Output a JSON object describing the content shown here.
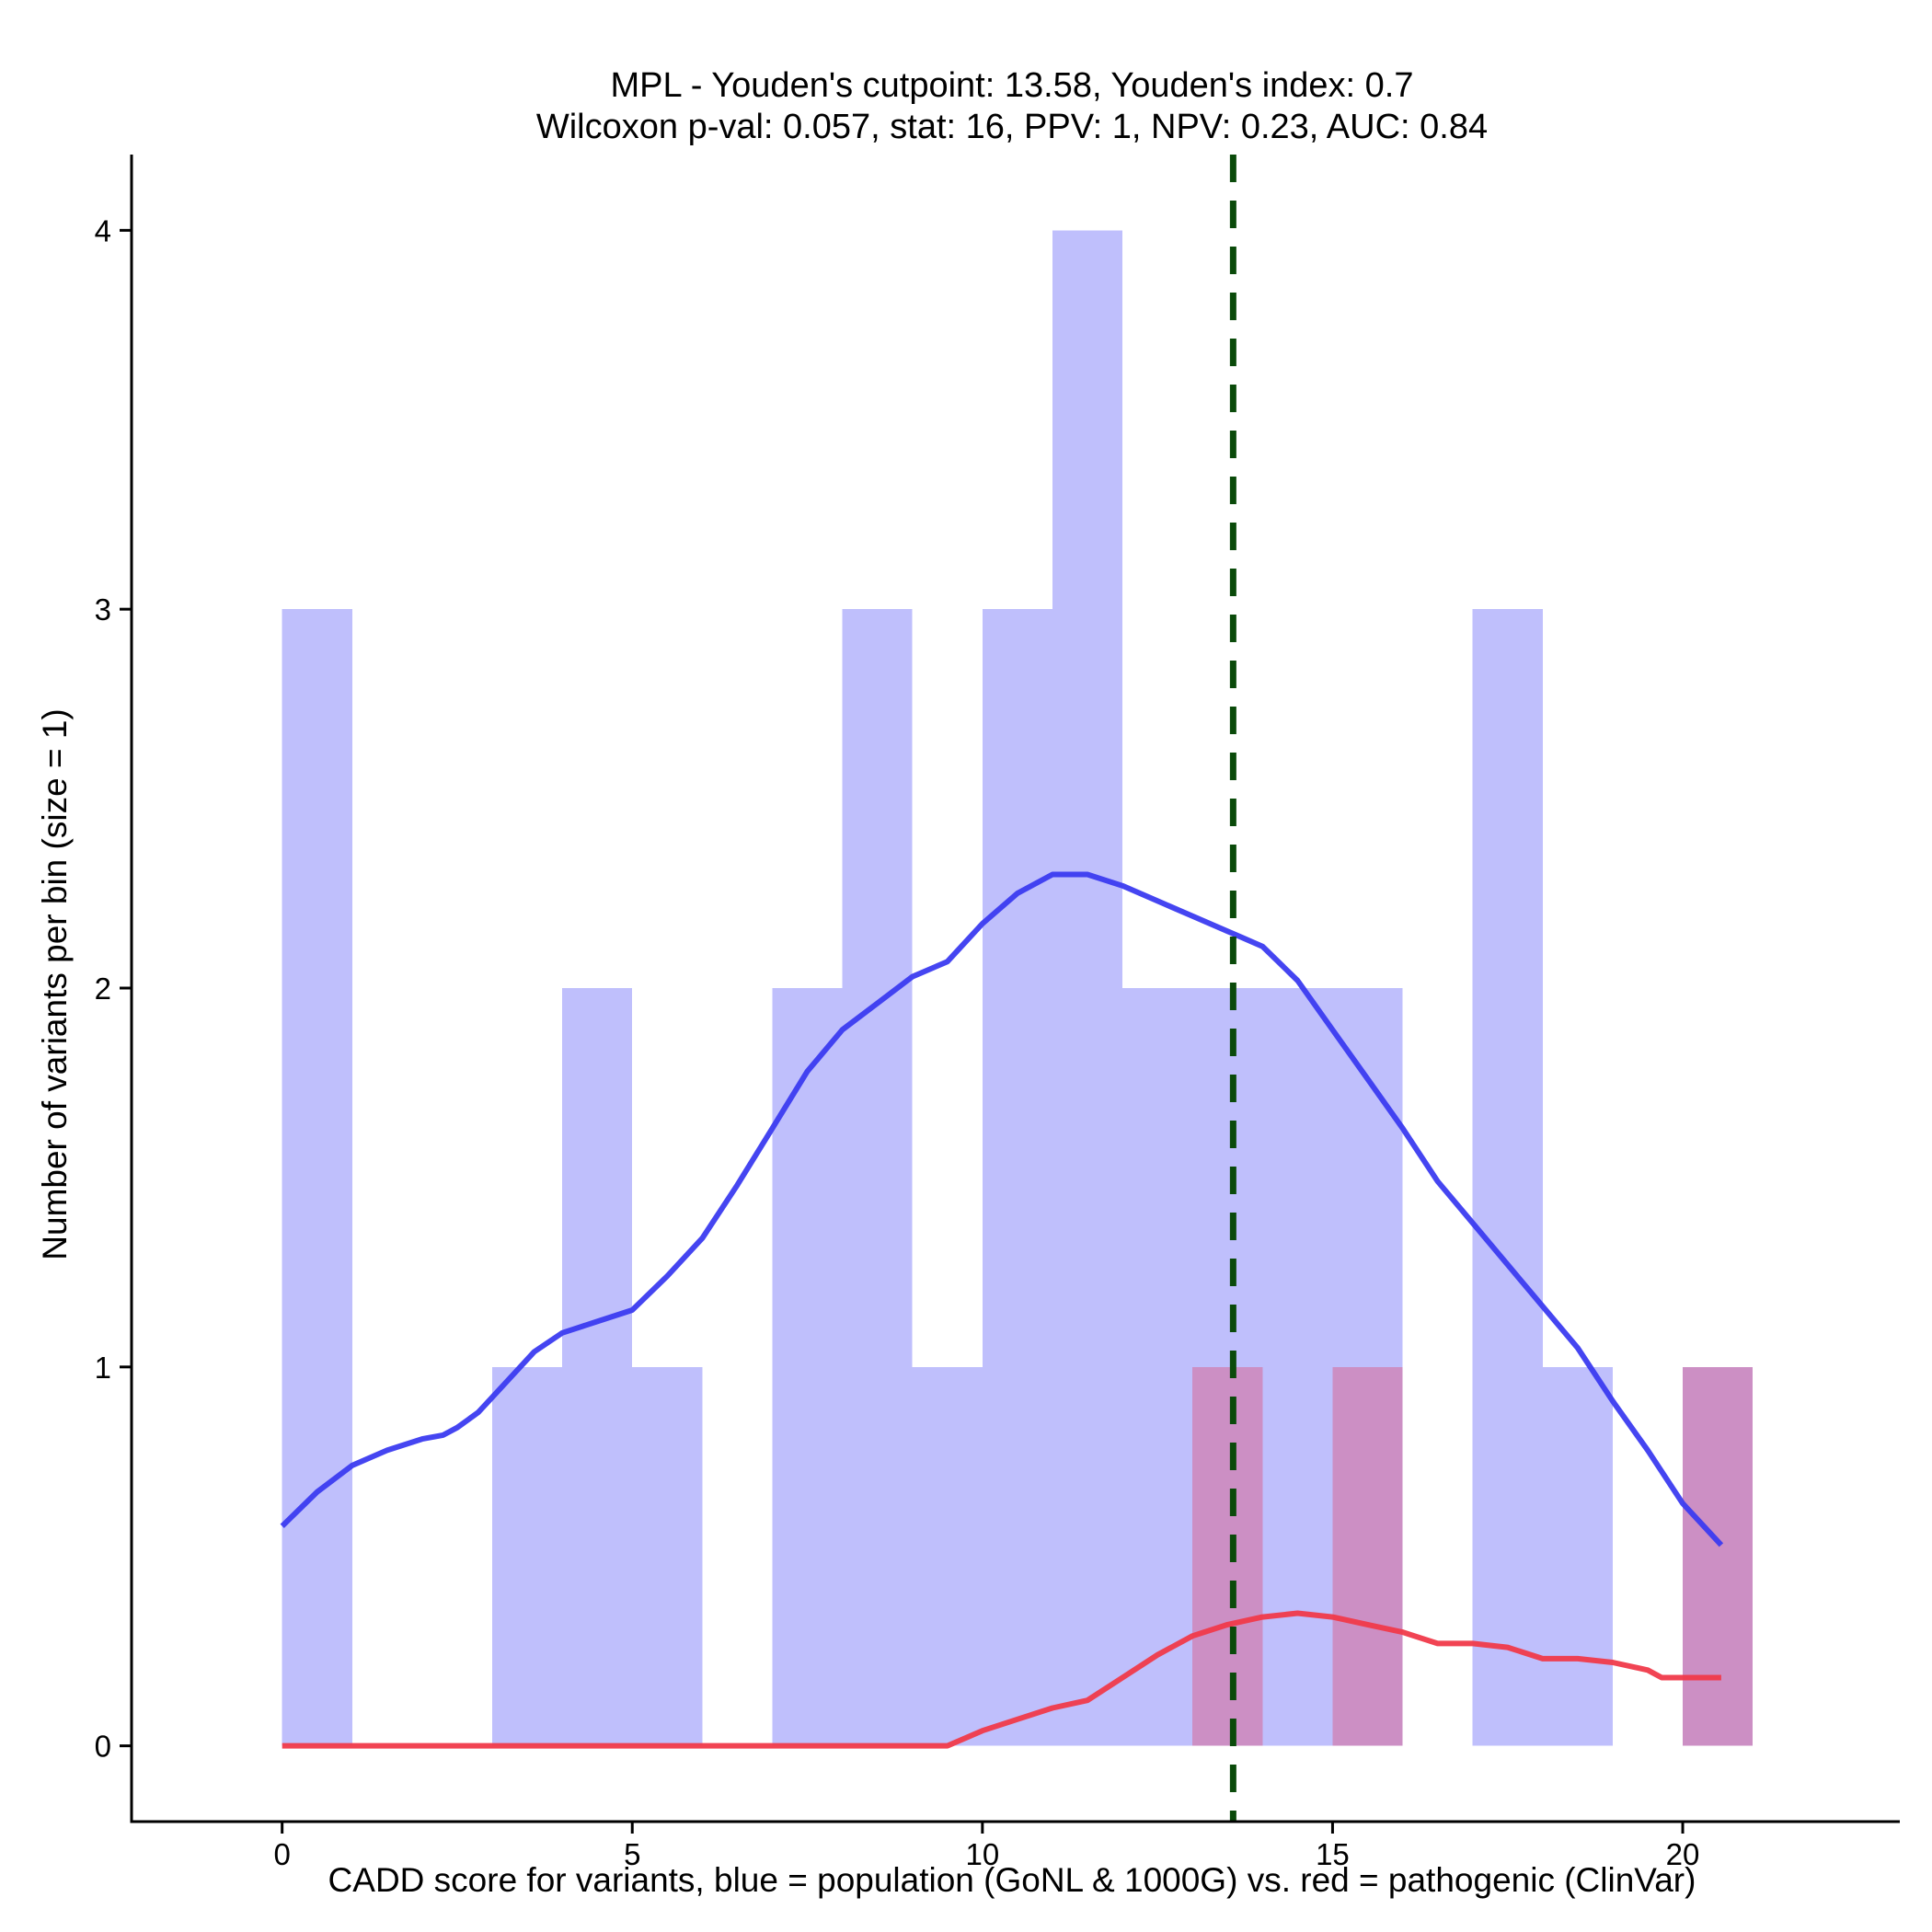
{
  "chart_data": {
    "type": "bar",
    "title": "MPL - Youden's cutpoint: 13.58, Youden's index: 0.7",
    "subtitle": "Wilcoxon p-val: 0.057, stat: 16, PPV: 1, NPV: 0.23, AUC: 0.84",
    "xlabel": "CADD score for variants, blue = population (GoNL & 1000G) vs. red = pathogenic (ClinVar)",
    "ylabel": "Number of variants per bin (size = 1)",
    "xlim": [
      -2.15,
      23.1
    ],
    "ylim": [
      -0.2,
      4.2
    ],
    "x_ticks": [
      0,
      5,
      10,
      15,
      20
    ],
    "y_ticks": [
      0,
      1,
      2,
      3,
      4
    ],
    "bin_width": 1,
    "cutpoint": 13.58,
    "colors": {
      "population_bar": "#bfbffc",
      "pathogenic_bar": "#cc8fc4",
      "population_line": "#3b3bf0",
      "pathogenic_line": "#f03a4a",
      "cutpoint_line": "#0a4a0a"
    },
    "series": [
      {
        "bins": [
          {
            "start": 0,
            "count": 3
          },
          {
            "start": 3,
            "count": 1
          },
          {
            "start": 4,
            "count": 2
          },
          {
            "start": 5,
            "count": 1
          },
          {
            "start": 7,
            "count": 2
          },
          {
            "start": 8,
            "count": 3
          },
          {
            "start": 9,
            "count": 1
          },
          {
            "start": 10,
            "count": 3
          },
          {
            "start": 11,
            "count": 4
          },
          {
            "start": 12,
            "count": 2
          },
          {
            "start": 13,
            "count": 2
          },
          {
            "start": 14,
            "count": 2
          },
          {
            "start": 15,
            "count": 2
          },
          {
            "start": 17,
            "count": 3
          },
          {
            "start": 18,
            "count": 1
          }
        ],
        "density": [
          [
            0.0,
            0.58
          ],
          [
            0.5,
            0.67
          ],
          [
            1.0,
            0.74
          ],
          [
            1.5,
            0.78
          ],
          [
            2.0,
            0.81
          ],
          [
            2.3,
            0.82
          ],
          [
            2.5,
            0.84
          ],
          [
            2.8,
            0.88
          ],
          [
            3.0,
            0.92
          ],
          [
            3.3,
            0.98
          ],
          [
            3.6,
            1.04
          ],
          [
            4.0,
            1.09
          ],
          [
            4.5,
            1.12
          ],
          [
            5.0,
            1.15
          ],
          [
            5.5,
            1.24
          ],
          [
            6.0,
            1.34
          ],
          [
            6.5,
            1.48
          ],
          [
            7.0,
            1.63
          ],
          [
            7.5,
            1.78
          ],
          [
            8.0,
            1.89
          ],
          [
            8.5,
            1.96
          ],
          [
            9.0,
            2.03
          ],
          [
            9.5,
            2.07
          ],
          [
            10.0,
            2.17
          ],
          [
            10.5,
            2.25
          ],
          [
            11.0,
            2.3
          ],
          [
            11.5,
            2.3
          ],
          [
            12.0,
            2.27
          ],
          [
            12.5,
            2.23
          ],
          [
            13.0,
            2.19
          ],
          [
            13.5,
            2.15
          ],
          [
            14.0,
            2.11
          ],
          [
            14.5,
            2.02
          ],
          [
            15.0,
            1.89
          ],
          [
            15.5,
            1.76
          ],
          [
            16.0,
            1.63
          ],
          [
            16.5,
            1.49
          ],
          [
            17.0,
            1.38
          ],
          [
            17.5,
            1.27
          ],
          [
            18.0,
            1.16
          ],
          [
            18.5,
            1.05
          ],
          [
            19.0,
            0.91
          ],
          [
            19.5,
            0.78
          ],
          [
            20.0,
            0.64
          ],
          [
            20.55,
            0.53
          ]
        ]
      },
      {
        "bins": [
          {
            "start": 13,
            "count": 1
          },
          {
            "start": 15,
            "count": 1
          },
          {
            "start": 20,
            "count": 1
          }
        ],
        "density": [
          [
            0.0,
            0.0
          ],
          [
            9.5,
            0.0
          ],
          [
            10.0,
            0.04
          ],
          [
            10.5,
            0.07
          ],
          [
            11.0,
            0.1
          ],
          [
            11.5,
            0.12
          ],
          [
            12.0,
            0.18
          ],
          [
            12.5,
            0.24
          ],
          [
            13.0,
            0.29
          ],
          [
            13.5,
            0.32
          ],
          [
            14.0,
            0.34
          ],
          [
            14.5,
            0.35
          ],
          [
            15.0,
            0.34
          ],
          [
            15.5,
            0.32
          ],
          [
            16.0,
            0.3
          ],
          [
            16.5,
            0.27
          ],
          [
            17.0,
            0.27
          ],
          [
            17.5,
            0.26
          ],
          [
            18.0,
            0.23
          ],
          [
            18.5,
            0.23
          ],
          [
            19.0,
            0.22
          ],
          [
            19.5,
            0.2
          ],
          [
            19.7,
            0.18
          ],
          [
            20.0,
            0.18
          ],
          [
            20.55,
            0.18
          ]
        ]
      }
    ]
  }
}
